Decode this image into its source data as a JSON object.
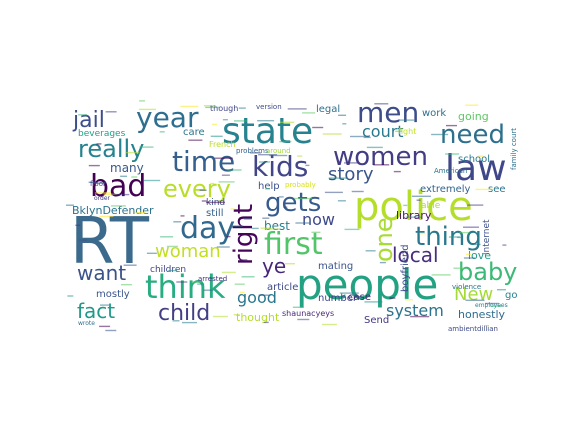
{
  "words": [
    {
      "text": "RT",
      "color": "#3b6a8c"
    },
    {
      "text": "people",
      "color": "#23a183"
    },
    {
      "text": "police",
      "color": "#b5de2b"
    },
    {
      "text": "state",
      "color": "#26828e"
    },
    {
      "text": "law",
      "color": "#3f4788"
    },
    {
      "text": "women",
      "color": "#433d84"
    },
    {
      "text": "think",
      "color": "#27ad81"
    },
    {
      "text": "time",
      "color": "#355f8d"
    },
    {
      "text": "kids",
      "color": "#404688"
    },
    {
      "text": "year",
      "color": "#2e6e8e"
    },
    {
      "text": "men",
      "color": "#3e4c8a"
    },
    {
      "text": "need",
      "color": "#2d708e"
    },
    {
      "text": "bad",
      "color": "#440154"
    },
    {
      "text": "every",
      "color": "#b8de29"
    },
    {
      "text": "gets",
      "color": "#365c8d"
    },
    {
      "text": "first",
      "color": "#52c569"
    },
    {
      "text": "day",
      "color": "#31688e"
    },
    {
      "text": "thing",
      "color": "#2a788e"
    },
    {
      "text": "right",
      "color": "#450559"
    },
    {
      "text": "really",
      "color": "#26828e"
    },
    {
      "text": "story",
      "color": "#3a548c"
    },
    {
      "text": "baby",
      "color": "#3aba76"
    },
    {
      "text": "child",
      "color": "#433e85"
    },
    {
      "text": "one",
      "color": "#a8db34"
    },
    {
      "text": "woman",
      "color": "#c2df23"
    },
    {
      "text": "local",
      "color": "#472f7d"
    },
    {
      "text": "jail",
      "color": "#3d4d8a"
    },
    {
      "text": "court",
      "color": "#29798e"
    },
    {
      "text": "now",
      "color": "#3e4989"
    },
    {
      "text": "good",
      "color": "#2a768e"
    },
    {
      "text": "fact",
      "color": "#1f9a8a"
    },
    {
      "text": "want",
      "color": "#3b528b"
    },
    {
      "text": "system",
      "color": "#2c738e"
    },
    {
      "text": "New",
      "color": "#a5db36"
    },
    {
      "text": "ye",
      "color": "#482677"
    },
    {
      "text": "BklynDefender",
      "color": "#2c728e"
    },
    {
      "text": "best",
      "color": "#287c8e"
    },
    {
      "text": "many",
      "color": "#38598c"
    },
    {
      "text": "mostly",
      "color": "#39568c"
    },
    {
      "text": "children",
      "color": "#414487"
    },
    {
      "text": "article",
      "color": "#3e4a89"
    },
    {
      "text": "thought",
      "color": "#b5de2b"
    },
    {
      "text": "Send",
      "color": "#443983"
    },
    {
      "text": "number",
      "color": "#404588"
    },
    {
      "text": "mating",
      "color": "#39558c"
    },
    {
      "text": "honestly",
      "color": "#2f6c8e"
    },
    {
      "text": "love",
      "color": "#1f9e89"
    },
    {
      "text": "library",
      "color": "#471063"
    },
    {
      "text": "boyfriend",
      "color": "#3d4e8a"
    },
    {
      "text": "internet",
      "color": "#3c508b"
    },
    {
      "text": "extremely",
      "color": "#32648e"
    },
    {
      "text": "school",
      "color": "#2a788e"
    },
    {
      "text": "work",
      "color": "#2d718e"
    },
    {
      "text": "going",
      "color": "#5cc863"
    },
    {
      "text": "case",
      "color": "#482173"
    },
    {
      "text": "help",
      "color": "#3b528b"
    },
    {
      "text": "still",
      "color": "#34618d"
    },
    {
      "text": "kind",
      "color": "#39558c"
    },
    {
      "text": "care",
      "color": "#2a778e"
    },
    {
      "text": "though",
      "color": "#404588"
    },
    {
      "text": "legal",
      "color": "#2d708e"
    },
    {
      "text": "beverages",
      "color": "#1fa088"
    },
    {
      "text": "able",
      "color": "#b0dd2f"
    },
    {
      "text": "see",
      "color": "#2b758e"
    },
    {
      "text": "floor",
      "color": "#3f4788"
    },
    {
      "text": "French",
      "color": "#b8de29"
    },
    {
      "text": "problems",
      "color": "#33638d"
    },
    {
      "text": "around",
      "color": "#a0da39"
    },
    {
      "text": "probably",
      "color": "#d8e219"
    },
    {
      "text": "arrested",
      "color": "#472d7b"
    },
    {
      "text": "American",
      "color": "#2c728e"
    },
    {
      "text": "fight",
      "color": "#c0df25"
    },
    {
      "text": "version",
      "color": "#3e4a89"
    },
    {
      "text": "violence",
      "color": "#2a768e"
    },
    {
      "text": "go",
      "color": "#26828e"
    },
    {
      "text": "shaunacyeys",
      "color": "#472a7a"
    },
    {
      "text": "ambientdillian",
      "color": "#3e4c8a"
    },
    {
      "text": "employees",
      "color": "#26828e"
    },
    {
      "text": "family court",
      "color": "#2d708e"
    },
    {
      "text": "wrote",
      "color": "#2c728e"
    },
    {
      "text": "order",
      "color": "#453781"
    }
  ]
}
